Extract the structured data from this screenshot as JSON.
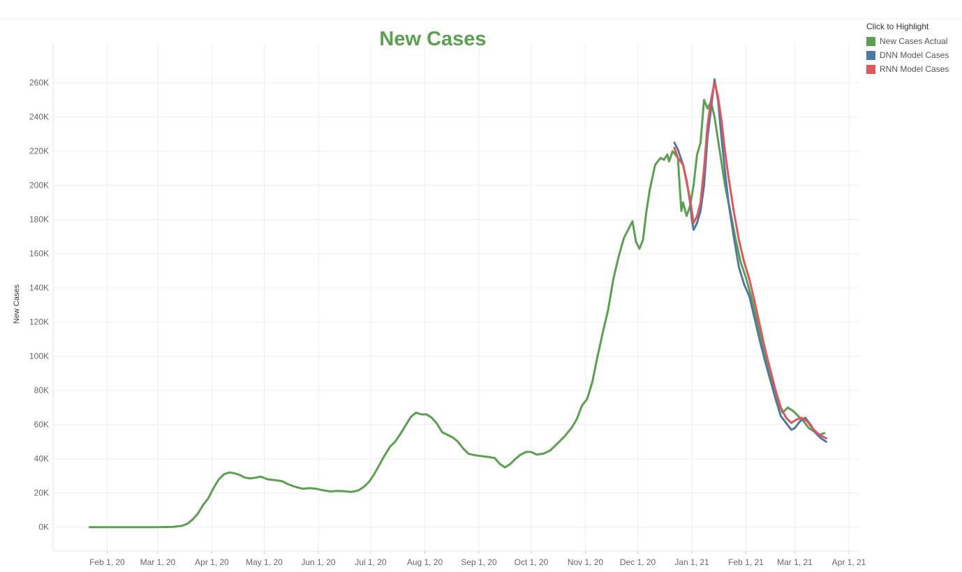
{
  "legend": {
    "title": "Click to Highlight",
    "items": [
      {
        "label": "New Cases Actual",
        "color": "#59a14f"
      },
      {
        "label": "DNN Model Cases",
        "color": "#4e79a7"
      },
      {
        "label": "RNN Model Cases",
        "color": "#e15759"
      }
    ]
  },
  "chart_data": {
    "type": "line",
    "title": "New Cases",
    "title_color": "#59a14f",
    "xlabel": "",
    "ylabel": "New Cases",
    "x_type": "date",
    "xlim": [
      "2020-01-01",
      "2021-04-07"
    ],
    "ylim": [
      -14000,
      275000
    ],
    "y_ticks": [
      0,
      20000,
      40000,
      60000,
      80000,
      100000,
      120000,
      140000,
      160000,
      180000,
      200000,
      220000,
      240000,
      260000
    ],
    "y_tick_labels": [
      "0K",
      "20K",
      "40K",
      "60K",
      "80K",
      "100K",
      "120K",
      "140K",
      "160K",
      "180K",
      "200K",
      "220K",
      "240K",
      "260K"
    ],
    "x_ticks": [
      "2020-02-01",
      "2020-03-01",
      "2020-04-01",
      "2020-05-01",
      "2020-06-01",
      "2020-07-01",
      "2020-08-01",
      "2020-09-01",
      "2020-10-01",
      "2020-11-01",
      "2020-12-01",
      "2021-01-01",
      "2021-02-01",
      "2021-03-01",
      "2021-04-01"
    ],
    "x_tick_labels": [
      "Feb 1, 20",
      "Mar 1, 20",
      "Apr 1, 20",
      "May 1, 20",
      "Jun 1, 20",
      "Jul 1, 20",
      "Aug 1, 20",
      "Sep 1, 20",
      "Oct 1, 20",
      "Nov 1, 20",
      "Dec 1, 20",
      "Jan 1, 21",
      "Feb 1, 21",
      "Mar 1, 21",
      "Apr 1, 21"
    ],
    "grid": true,
    "legend_position": "top-right",
    "series": [
      {
        "name": "New Cases Actual",
        "color": "#59a14f",
        "points": [
          [
            "2020-01-22",
            0
          ],
          [
            "2020-02-15",
            0
          ],
          [
            "2020-03-01",
            0
          ],
          [
            "2020-03-10",
            200
          ],
          [
            "2020-03-15",
            800
          ],
          [
            "2020-03-18",
            2000
          ],
          [
            "2020-03-21",
            4500
          ],
          [
            "2020-03-24",
            8000
          ],
          [
            "2020-03-27",
            13000
          ],
          [
            "2020-03-30",
            17000
          ],
          [
            "2020-04-02",
            23000
          ],
          [
            "2020-04-05",
            28000
          ],
          [
            "2020-04-08",
            31000
          ],
          [
            "2020-04-11",
            32000
          ],
          [
            "2020-04-14",
            31500
          ],
          [
            "2020-04-17",
            30500
          ],
          [
            "2020-04-20",
            29000
          ],
          [
            "2020-04-23",
            28500
          ],
          [
            "2020-04-26",
            29000
          ],
          [
            "2020-04-29",
            29500
          ],
          [
            "2020-05-03",
            28000
          ],
          [
            "2020-05-07",
            27500
          ],
          [
            "2020-05-11",
            27000
          ],
          [
            "2020-05-15",
            25000
          ],
          [
            "2020-05-19",
            23500
          ],
          [
            "2020-05-23",
            22500
          ],
          [
            "2020-05-27",
            22800
          ],
          [
            "2020-05-31",
            22400
          ],
          [
            "2020-06-04",
            21500
          ],
          [
            "2020-06-08",
            20900
          ],
          [
            "2020-06-12",
            21200
          ],
          [
            "2020-06-16",
            21000
          ],
          [
            "2020-06-20",
            20600
          ],
          [
            "2020-06-24",
            21500
          ],
          [
            "2020-06-27",
            23500
          ],
          [
            "2020-06-30",
            26500
          ],
          [
            "2020-07-03",
            31000
          ],
          [
            "2020-07-06",
            36500
          ],
          [
            "2020-07-09",
            42000
          ],
          [
            "2020-07-12",
            47000
          ],
          [
            "2020-07-15",
            50000
          ],
          [
            "2020-07-18",
            54500
          ],
          [
            "2020-07-21",
            59500
          ],
          [
            "2020-07-24",
            64500
          ],
          [
            "2020-07-27",
            67000
          ],
          [
            "2020-07-30",
            66000
          ],
          [
            "2020-08-02",
            66000
          ],
          [
            "2020-08-05",
            64000
          ],
          [
            "2020-08-08",
            60500
          ],
          [
            "2020-08-11",
            55500
          ],
          [
            "2020-08-14",
            54000
          ],
          [
            "2020-08-17",
            52500
          ],
          [
            "2020-08-20",
            50000
          ],
          [
            "2020-08-23",
            46000
          ],
          [
            "2020-08-26",
            43000
          ],
          [
            "2020-08-30",
            42000
          ],
          [
            "2020-09-03",
            41500
          ],
          [
            "2020-09-07",
            41000
          ],
          [
            "2020-09-10",
            40500
          ],
          [
            "2020-09-13",
            37000
          ],
          [
            "2020-09-16",
            35000
          ],
          [
            "2020-09-19",
            37000
          ],
          [
            "2020-09-22",
            40000
          ],
          [
            "2020-09-25",
            42500
          ],
          [
            "2020-09-28",
            44000
          ],
          [
            "2020-10-01",
            44000
          ],
          [
            "2020-10-04",
            42500
          ],
          [
            "2020-10-08",
            43000
          ],
          [
            "2020-10-12",
            45000
          ],
          [
            "2020-10-16",
            49000
          ],
          [
            "2020-10-20",
            53000
          ],
          [
            "2020-10-24",
            58000
          ],
          [
            "2020-10-27",
            63000
          ],
          [
            "2020-10-30",
            71000
          ],
          [
            "2020-11-02",
            75000
          ],
          [
            "2020-11-05",
            85000
          ],
          [
            "2020-11-08",
            100000
          ],
          [
            "2020-11-11",
            114000
          ],
          [
            "2020-11-14",
            127000
          ],
          [
            "2020-11-17",
            145000
          ],
          [
            "2020-11-20",
            158000
          ],
          [
            "2020-11-23",
            169000
          ],
          [
            "2020-11-26",
            175000
          ],
          [
            "2020-11-28",
            179000
          ],
          [
            "2020-11-30",
            167000
          ],
          [
            "2020-12-02",
            163000
          ],
          [
            "2020-12-04",
            168000
          ],
          [
            "2020-12-06",
            185000
          ],
          [
            "2020-12-08",
            198000
          ],
          [
            "2020-12-11",
            212000
          ],
          [
            "2020-12-14",
            216000
          ],
          [
            "2020-12-16",
            215000
          ],
          [
            "2020-12-18",
            218000
          ],
          [
            "2020-12-19",
            214000
          ],
          [
            "2020-12-21",
            220000
          ],
          [
            "2020-12-24",
            216000
          ],
          [
            "2020-12-26",
            185000
          ],
          [
            "2020-12-27",
            190000
          ],
          [
            "2020-12-29",
            182000
          ],
          [
            "2020-12-31",
            188000
          ],
          [
            "2021-01-02",
            200000
          ],
          [
            "2021-01-04",
            218000
          ],
          [
            "2021-01-06",
            225000
          ],
          [
            "2021-01-08",
            250000
          ],
          [
            "2021-01-10",
            245000
          ],
          [
            "2021-01-12",
            249000
          ],
          [
            "2021-01-14",
            240000
          ],
          [
            "2021-01-17",
            220000
          ],
          [
            "2021-01-20",
            200000
          ],
          [
            "2021-01-23",
            185000
          ],
          [
            "2021-01-26",
            169000
          ],
          [
            "2021-01-29",
            155000
          ],
          [
            "2021-02-01",
            146000
          ],
          [
            "2021-02-04",
            135000
          ],
          [
            "2021-02-07",
            122000
          ],
          [
            "2021-02-10",
            108000
          ],
          [
            "2021-02-13",
            96000
          ],
          [
            "2021-02-16",
            84000
          ],
          [
            "2021-02-19",
            74000
          ],
          [
            "2021-02-22",
            67000
          ],
          [
            "2021-02-25",
            70000
          ],
          [
            "2021-02-28",
            68000
          ],
          [
            "2021-03-03",
            65000
          ],
          [
            "2021-03-06",
            62000
          ],
          [
            "2021-03-09",
            58000
          ],
          [
            "2021-03-12",
            56000
          ],
          [
            "2021-03-15",
            54000
          ],
          [
            "2021-03-18",
            55000
          ]
        ]
      },
      {
        "name": "DNN Model Cases",
        "color": "#4e79a7",
        "points": [
          [
            "2020-12-22",
            225000
          ],
          [
            "2020-12-24",
            221000
          ],
          [
            "2020-12-27",
            212000
          ],
          [
            "2020-12-29",
            203000
          ],
          [
            "2020-12-31",
            190000
          ],
          [
            "2021-01-01",
            180000
          ],
          [
            "2021-01-02",
            174000
          ],
          [
            "2021-01-04",
            178000
          ],
          [
            "2021-01-06",
            185000
          ],
          [
            "2021-01-08",
            200000
          ],
          [
            "2021-01-10",
            228000
          ],
          [
            "2021-01-12",
            245000
          ],
          [
            "2021-01-14",
            262000
          ],
          [
            "2021-01-16",
            250000
          ],
          [
            "2021-01-18",
            228000
          ],
          [
            "2021-01-20",
            208000
          ],
          [
            "2021-01-22",
            190000
          ],
          [
            "2021-01-25",
            170000
          ],
          [
            "2021-01-28",
            152000
          ],
          [
            "2021-01-31",
            142000
          ],
          [
            "2021-02-03",
            135000
          ],
          [
            "2021-02-06",
            122000
          ],
          [
            "2021-02-09",
            109000
          ],
          [
            "2021-02-12",
            97000
          ],
          [
            "2021-02-15",
            86000
          ],
          [
            "2021-02-18",
            75000
          ],
          [
            "2021-02-21",
            65000
          ],
          [
            "2021-02-24",
            61000
          ],
          [
            "2021-02-27",
            57000
          ],
          [
            "2021-03-01",
            58000
          ],
          [
            "2021-03-04",
            62000
          ],
          [
            "2021-03-07",
            64000
          ],
          [
            "2021-03-10",
            60000
          ],
          [
            "2021-03-13",
            55000
          ],
          [
            "2021-03-16",
            52000
          ],
          [
            "2021-03-19",
            50000
          ]
        ]
      },
      {
        "name": "RNN Model Cases",
        "color": "#e15759",
        "points": [
          [
            "2020-12-22",
            222000
          ],
          [
            "2020-12-24",
            216000
          ],
          [
            "2020-12-27",
            212000
          ],
          [
            "2020-12-29",
            202000
          ],
          [
            "2020-12-31",
            192000
          ],
          [
            "2021-01-01",
            185000
          ],
          [
            "2021-01-02",
            178000
          ],
          [
            "2021-01-04",
            182000
          ],
          [
            "2021-01-06",
            190000
          ],
          [
            "2021-01-08",
            210000
          ],
          [
            "2021-01-10",
            235000
          ],
          [
            "2021-01-12",
            250000
          ],
          [
            "2021-01-14",
            260000
          ],
          [
            "2021-01-16",
            252000
          ],
          [
            "2021-01-18",
            238000
          ],
          [
            "2021-01-20",
            220000
          ],
          [
            "2021-01-22",
            205000
          ],
          [
            "2021-01-25",
            185000
          ],
          [
            "2021-01-28",
            168000
          ],
          [
            "2021-01-31",
            155000
          ],
          [
            "2021-02-03",
            145000
          ],
          [
            "2021-02-06",
            132000
          ],
          [
            "2021-02-09",
            118000
          ],
          [
            "2021-02-12",
            104000
          ],
          [
            "2021-02-15",
            92000
          ],
          [
            "2021-02-18",
            80000
          ],
          [
            "2021-02-21",
            70000
          ],
          [
            "2021-02-24",
            64000
          ],
          [
            "2021-02-27",
            61000
          ],
          [
            "2021-03-02",
            63000
          ],
          [
            "2021-03-05",
            64000
          ],
          [
            "2021-03-08",
            62000
          ],
          [
            "2021-03-11",
            58000
          ],
          [
            "2021-03-14",
            55000
          ],
          [
            "2021-03-17",
            53000
          ],
          [
            "2021-03-19",
            52000
          ]
        ]
      }
    ]
  }
}
